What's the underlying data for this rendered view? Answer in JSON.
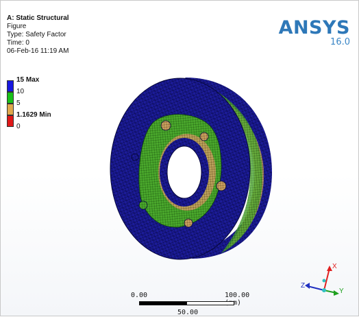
{
  "header": {
    "title": "A: Static Structural",
    "line1": "Figure",
    "line2": "Type: Safety Factor",
    "line3": "Time: 0",
    "line4": "06-Feb-16 11:19 AM"
  },
  "brand": {
    "name": "ANSYS",
    "version": "16.0"
  },
  "legend": [
    {
      "label": "15 Max",
      "color": "#1818e0",
      "bold": true
    },
    {
      "label": "10",
      "color": "#19c119",
      "bold": false
    },
    {
      "label": "5",
      "color": "#e0a84c",
      "bold": false
    },
    {
      "label": "1.1629 Min",
      "color": "#e01818",
      "bold": true
    },
    {
      "label": "0",
      "color": "",
      "bold": false
    }
  ],
  "scale": {
    "left_label": "0.00",
    "right_label": "100.00 (mm)",
    "mid_label": "50.00"
  },
  "triad": {
    "x": "X",
    "y": "Y",
    "z": "Z"
  },
  "colors": {
    "brand": "#2e78b8",
    "mesh_blue": "#1a1aa0",
    "mesh_green": "#4aa82c",
    "mesh_orange": "#c8a060"
  }
}
